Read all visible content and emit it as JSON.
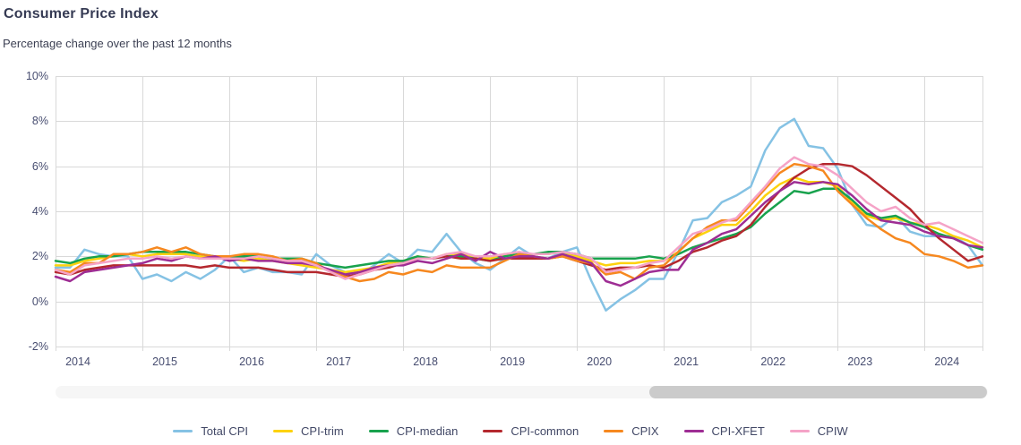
{
  "header": {
    "title": "Consumer Price Index",
    "subtitle": "Percentage change over the past 12 months"
  },
  "scrollbar": {
    "thumb_left_pct": 63.7,
    "thumb_width_pct": 36.2
  },
  "colors": {
    "gridline": "#d9d9d9",
    "axis_text": "#474d70",
    "title_text": "#363b54"
  },
  "chart_data": {
    "type": "line",
    "title": "Consumer Price Index",
    "subtitle": "Percentage change over the past 12 months",
    "xlabel": "",
    "ylabel": "",
    "grid": true,
    "legend_position": "bottom",
    "xlim": [
      2014,
      2024.6667
    ],
    "ylim": [
      -2,
      10
    ],
    "x_start": "2014-01",
    "x_interval_months": 2,
    "x_end": "2024-09",
    "yticks": [
      {
        "label": "10%",
        "value": 10
      },
      {
        "label": "8%",
        "value": 8
      },
      {
        "label": "6%",
        "value": 6
      },
      {
        "label": "4%",
        "value": 4
      },
      {
        "label": "2%",
        "value": 2
      },
      {
        "label": "0%",
        "value": 0
      },
      {
        "label": "-2%",
        "value": -2
      }
    ],
    "xticks": [
      {
        "label": "2014",
        "value": 2014
      },
      {
        "label": "2015",
        "value": 2015
      },
      {
        "label": "2016",
        "value": 2016
      },
      {
        "label": "2017",
        "value": 2017
      },
      {
        "label": "2018",
        "value": 2018
      },
      {
        "label": "2019",
        "value": 2019
      },
      {
        "label": "2020",
        "value": 2020
      },
      {
        "label": "2021",
        "value": 2021
      },
      {
        "label": "2022",
        "value": 2022
      },
      {
        "label": "2023",
        "value": 2023
      },
      {
        "label": "2024",
        "value": 2024
      }
    ],
    "series": [
      {
        "id": "total-cpi",
        "name": "Total CPI",
        "color": "#85c2e4",
        "values": [
          1.5,
          1.5,
          2.3,
          2.1,
          2.0,
          2.0,
          1.0,
          1.2,
          0.9,
          1.3,
          1.0,
          1.4,
          2.0,
          1.3,
          1.5,
          1.3,
          1.3,
          1.2,
          2.1,
          1.6,
          1.3,
          1.2,
          1.6,
          2.1,
          1.7,
          2.3,
          2.2,
          3.0,
          2.2,
          1.7,
          1.4,
          1.9,
          2.4,
          2.0,
          1.9,
          2.2,
          2.4,
          0.9,
          -0.4,
          0.1,
          0.5,
          1.0,
          1.0,
          2.2,
          3.6,
          3.7,
          4.4,
          4.7,
          5.1,
          6.7,
          7.7,
          8.1,
          6.9,
          6.8,
          5.9,
          4.3,
          3.4,
          3.3,
          3.8,
          3.1,
          2.9,
          2.9,
          2.9,
          2.5,
          1.6
        ]
      },
      {
        "id": "cpi-trim",
        "name": "CPI-trim",
        "color": "#fdd20e",
        "values": [
          1.6,
          1.6,
          1.8,
          1.9,
          2.0,
          2.1,
          2.0,
          2.1,
          2.1,
          2.1,
          2.0,
          1.9,
          1.9,
          1.8,
          1.9,
          1.8,
          1.7,
          1.6,
          1.5,
          1.4,
          1.3,
          1.4,
          1.5,
          1.7,
          1.8,
          2.0,
          1.9,
          2.1,
          2.1,
          1.9,
          1.9,
          2.1,
          2.1,
          2.1,
          2.1,
          2.2,
          2.0,
          1.8,
          1.6,
          1.7,
          1.7,
          1.8,
          1.8,
          2.2,
          2.8,
          3.1,
          3.4,
          3.4,
          4.0,
          4.7,
          5.2,
          5.5,
          5.3,
          5.3,
          5.1,
          4.4,
          3.8,
          3.6,
          3.7,
          3.5,
          3.4,
          3.2,
          2.9,
          2.7,
          2.4
        ]
      },
      {
        "id": "cpi-median",
        "name": "CPI-median",
        "color": "#18a24d",
        "values": [
          1.8,
          1.7,
          1.9,
          2.0,
          2.0,
          2.1,
          2.2,
          2.2,
          2.2,
          2.2,
          2.1,
          2.0,
          2.0,
          2.0,
          2.0,
          1.9,
          1.9,
          1.9,
          1.7,
          1.6,
          1.5,
          1.6,
          1.7,
          1.8,
          1.8,
          2.0,
          1.9,
          2.0,
          2.0,
          1.9,
          1.8,
          2.0,
          2.1,
          2.1,
          2.2,
          2.2,
          2.1,
          1.9,
          1.9,
          1.9,
          1.9,
          2.0,
          1.9,
          2.1,
          2.4,
          2.6,
          2.8,
          3.0,
          3.3,
          3.9,
          4.4,
          4.9,
          4.8,
          5.0,
          5.0,
          4.5,
          3.9,
          3.7,
          3.8,
          3.5,
          3.3,
          3.0,
          2.8,
          2.5,
          2.3
        ]
      },
      {
        "id": "cpi-common",
        "name": "CPI-common",
        "color": "#b4282e",
        "values": [
          1.3,
          1.2,
          1.4,
          1.5,
          1.6,
          1.6,
          1.6,
          1.6,
          1.6,
          1.6,
          1.5,
          1.6,
          1.5,
          1.5,
          1.5,
          1.4,
          1.3,
          1.3,
          1.3,
          1.2,
          1.1,
          1.2,
          1.4,
          1.5,
          1.7,
          1.9,
          1.9,
          2.0,
          1.9,
          1.9,
          1.8,
          1.9,
          1.9,
          1.9,
          1.9,
          2.0,
          1.8,
          1.6,
          1.4,
          1.5,
          1.5,
          1.6,
          1.5,
          1.8,
          2.2,
          2.4,
          2.7,
          2.9,
          3.4,
          4.2,
          4.9,
          5.5,
          5.9,
          6.1,
          6.1,
          6.0,
          5.6,
          5.1,
          4.6,
          4.1,
          3.4,
          2.8,
          2.3,
          1.8,
          2.0
        ]
      },
      {
        "id": "cpix",
        "name": "CPIX",
        "color": "#f6881f",
        "values": [
          1.4,
          1.3,
          1.7,
          1.7,
          2.1,
          2.1,
          2.2,
          2.4,
          2.2,
          2.4,
          2.1,
          2.0,
          2.0,
          2.1,
          2.1,
          2.0,
          1.8,
          1.9,
          1.7,
          1.3,
          1.1,
          0.9,
          1.0,
          1.3,
          1.2,
          1.4,
          1.3,
          1.6,
          1.5,
          1.5,
          1.5,
          1.8,
          2.1,
          2.0,
          1.9,
          2.0,
          1.8,
          1.7,
          1.2,
          1.3,
          1.0,
          1.5,
          1.6,
          2.2,
          2.8,
          3.3,
          3.6,
          3.6,
          4.3,
          5.0,
          5.7,
          6.1,
          6.0,
          5.8,
          4.9,
          4.3,
          3.7,
          3.2,
          2.8,
          2.6,
          2.1,
          2.0,
          1.8,
          1.5,
          1.6
        ]
      },
      {
        "id": "cpi-xfet",
        "name": "CPI-XFET",
        "color": "#9e2d94",
        "values": [
          1.1,
          0.9,
          1.3,
          1.4,
          1.5,
          1.6,
          1.7,
          1.9,
          1.8,
          2.0,
          1.9,
          2.0,
          1.8,
          1.9,
          1.8,
          1.8,
          1.7,
          1.7,
          1.6,
          1.4,
          1.2,
          1.3,
          1.5,
          1.6,
          1.6,
          1.8,
          1.7,
          1.9,
          2.1,
          1.8,
          2.2,
          1.9,
          2.0,
          2.0,
          1.9,
          2.1,
          1.9,
          1.7,
          0.9,
          0.7,
          1.0,
          1.3,
          1.4,
          1.4,
          2.3,
          2.6,
          3.0,
          3.2,
          3.8,
          4.4,
          4.9,
          5.3,
          5.2,
          5.3,
          5.2,
          4.7,
          4.1,
          3.6,
          3.5,
          3.4,
          3.1,
          2.9,
          2.8,
          2.5,
          2.4
        ]
      },
      {
        "id": "cpiw",
        "name": "CPIW",
        "color": "#f5a3c7",
        "values": [
          1.4,
          1.2,
          1.6,
          1.7,
          1.8,
          1.9,
          1.9,
          2.0,
          1.9,
          2.0,
          1.9,
          1.9,
          1.9,
          1.9,
          2.0,
          1.9,
          1.8,
          1.8,
          1.6,
          1.3,
          1.0,
          1.2,
          1.4,
          1.6,
          1.7,
          1.9,
          1.9,
          2.1,
          2.2,
          2.0,
          2.0,
          2.1,
          2.2,
          2.1,
          2.1,
          2.2,
          2.1,
          1.9,
          1.3,
          1.4,
          1.5,
          1.7,
          1.8,
          2.4,
          3.0,
          3.2,
          3.5,
          3.7,
          4.4,
          5.1,
          5.9,
          6.4,
          6.1,
          6.0,
          5.6,
          5.0,
          4.4,
          4.0,
          4.2,
          3.7,
          3.4,
          3.5,
          3.2,
          2.9,
          2.6
        ]
      }
    ]
  }
}
